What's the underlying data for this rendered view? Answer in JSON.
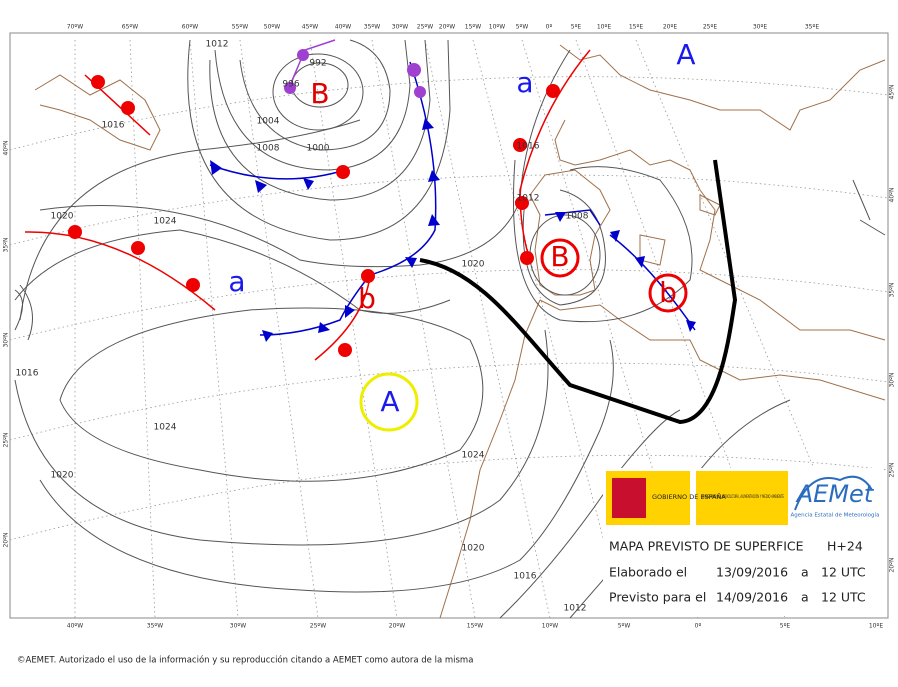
{
  "map": {
    "lon_top": [
      "70ºW",
      "65ºW",
      "60ºW",
      "55ºW",
      "50ºW",
      "45ºW",
      "40ºW",
      "35ºW",
      "30ºW",
      "25ºW",
      "20ºW",
      "15ºW",
      "10ºW",
      "5ºW",
      "0º",
      "5ºE",
      "10ºE",
      "15ºE",
      "20ºE",
      "25ºE",
      "30ºE",
      "35ºE"
    ],
    "lon_bottom": [
      "40ºW",
      "35ºW",
      "30ºW",
      "25ºW",
      "20ºW",
      "15ºW",
      "10ºW",
      "5ºW",
      "0º",
      "5ºE",
      "10ºE"
    ],
    "lat_left": [
      "40ºN",
      "35ºN",
      "30ºN",
      "25ºN",
      "20ºN"
    ],
    "lat_right": [
      "45ºN",
      "40ºN",
      "35ºN",
      "30ºN",
      "25ºN",
      "20ºN"
    ],
    "isobar_labels": [
      "1012",
      "992",
      "996",
      "1004",
      "1008",
      "1000",
      "1016",
      "1020",
      "1024",
      "1016",
      "1024",
      "1020",
      "1020",
      "1024",
      "1020",
      "1016",
      "1012",
      "1016",
      "1012",
      "1008"
    ],
    "centers": [
      {
        "label": "B",
        "color": "#e00000"
      },
      {
        "label": "a",
        "color": "#1a1aee"
      },
      {
        "label": "b",
        "color": "#e00000"
      },
      {
        "label": "A",
        "color": "#1a1aee"
      },
      {
        "label": "a",
        "color": "#1a1aee"
      },
      {
        "label": "A",
        "color": "#1a1aee"
      },
      {
        "label": "B",
        "color": "#e00000"
      },
      {
        "label": "b",
        "color": "#e00000"
      }
    ]
  },
  "info_box": {
    "gobierno": "GOBIERNO DE ESPAÑA",
    "ministerio": "MINISTERIO DE AGRICULTURA, ALIMENTACIÓN Y MEDIO AMBIENTE",
    "aemet": "AEMet",
    "agencia": "Agencia Estatal de Meteorología",
    "title": "MAPA PREVISTO DE SUPERFICE",
    "horizon": "H+24",
    "made_label": "Elaborado el",
    "made_date": "13/09/2016",
    "made_at": "a",
    "made_time": "12 UTC",
    "valid_label": "Previsto para el",
    "valid_date": "14/09/2016",
    "valid_at": "a",
    "valid_time": "12 UTC"
  },
  "footer": "©AEMET. Autorizado el uso de la información y su reproducción citando a AEMET como autora de la misma"
}
